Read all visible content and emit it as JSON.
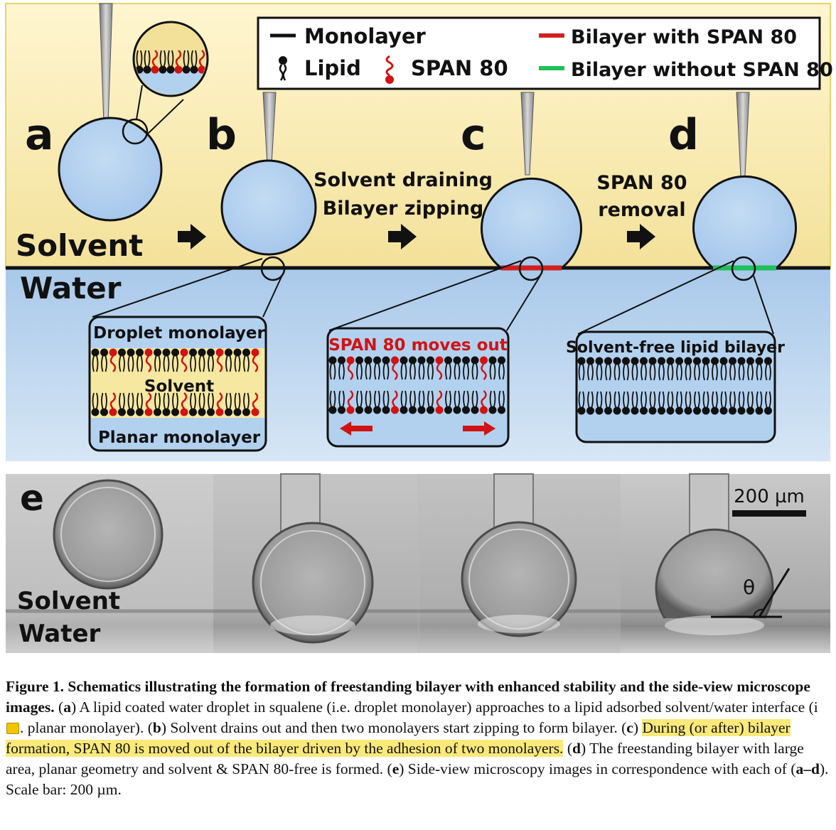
{
  "panels": {
    "a": "a",
    "b": "b",
    "c": "c",
    "d": "d",
    "e": "e"
  },
  "legend": {
    "monolayer": "Monolayer",
    "lipid": "Lipid",
    "span80": "SPAN 80",
    "bilayer_with": "Bilayer with SPAN 80",
    "bilayer_without": "Bilayer without SPAN 80"
  },
  "phases": {
    "solvent": "Solvent",
    "water": "Water"
  },
  "steps": {
    "b_c_line1": "Solvent draining",
    "b_c_line2": "Bilayer zipping",
    "c_d_line1": "SPAN 80",
    "c_d_line2": "removal"
  },
  "insets": {
    "droplet_monolayer": "Droplet monolayer",
    "solvent": "Solvent",
    "planar_monolayer": "Planar monolayer",
    "span_moves_out": "SPAN 80 moves out",
    "solvent_free": "Solvent-free lipid bilayer"
  },
  "micro": {
    "scale": "200 µm",
    "solvent": "Solvent",
    "water": "Water",
    "theta": "θ"
  },
  "colors": {
    "solvent_yellow": "#f7e9a6",
    "water_blue": "#bcd6ee",
    "droplet_blue": "#b2d1ef",
    "span_red": "#d11313",
    "bilayer_red": "#d41f1f",
    "bilayer_green": "#1fbf5a"
  },
  "caption": {
    "fig_label": "Figure 1.",
    "bold_title": "Schematics illustrating the formation of freestanding bilayer with enhanced stability and the side-view microscope images.",
    "a_open": " (",
    "a_label": "a",
    "a_text": ") A lipid coated water droplet in squalene (i.e. droplet monolayer) approaches to a lipid adsorbed solvent/water interface (i",
    "a_text2": ". planar monolayer). (",
    "b_label": "b",
    "b_text": ") Solvent drains out and then two monolayers start zipping to form bilayer. (",
    "c_label": "c",
    "c_text_pre": ") ",
    "c_text_hl": "During (or after) bilayer formation, SPAN 80 is moved out of the bilayer driven by the adhesion of two monolayers.",
    "c_text_post": " (",
    "d_label": "d",
    "d_text": ") The freestanding bilayer with large area, planar geometry and solvent & SPAN 80-free is formed. (",
    "e_label": "e",
    "e_text": ") Side-view microscopy images in correspondence with each of (",
    "ad_label": "a–d",
    "e_text2": "). Scale bar: 200 µm."
  }
}
